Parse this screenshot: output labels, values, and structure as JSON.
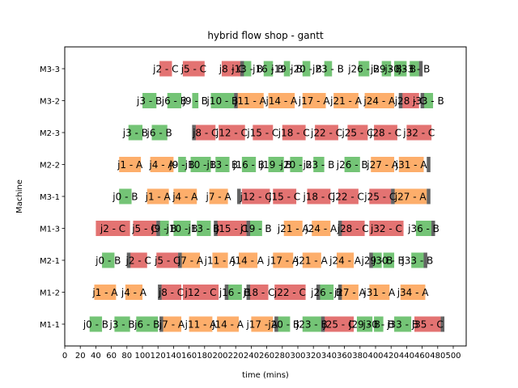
{
  "chart_data": {
    "type": "gantt",
    "title": "hybrid flow shop - gantt",
    "xlabel": "time (mins)",
    "ylabel": "Machine",
    "xlim": [
      0,
      520
    ],
    "xticks": [
      0,
      20,
      40,
      60,
      80,
      100,
      120,
      140,
      160,
      180,
      200,
      220,
      240,
      260,
      280,
      300,
      320,
      340,
      360,
      380,
      400,
      420,
      440,
      460,
      480,
      500
    ],
    "grid": false,
    "legend": "none",
    "colors": {
      "A": "#fdae6b",
      "B": "#74c476",
      "C": "#e37372",
      "setup": "#636363"
    },
    "machines": [
      "M1-1",
      "M1-2",
      "M2-1",
      "M1-3",
      "M3-1",
      "M2-2",
      "M2-3",
      "M3-2",
      "M3-3"
    ],
    "tasks": [
      {
        "machine": "M1-1",
        "label": "j0 - B",
        "type": "B",
        "start": 32,
        "end": 48
      },
      {
        "machine": "M1-1",
        "label": "j3 - B",
        "type": "B",
        "start": 64,
        "end": 84
      },
      {
        "machine": "M1-1",
        "label": "j6 - B",
        "type": "B",
        "start": 92,
        "end": 120
      },
      {
        "machine": "M1-1",
        "label": "j7 - A",
        "type": "A",
        "start": 126,
        "end": 150
      },
      {
        "machine": "M1-1",
        "label": "j11 - A",
        "type": "A",
        "start": 160,
        "end": 190
      },
      {
        "machine": "M1-1",
        "label": "j14 - A",
        "type": "A",
        "start": 196,
        "end": 224
      },
      {
        "machine": "M1-1",
        "label": "j17 - A",
        "type": "A",
        "start": 240,
        "end": 268
      },
      {
        "machine": "M1-1",
        "label": "j20 - B",
        "type": "B",
        "start": 274,
        "end": 290
      },
      {
        "machine": "M1-1",
        "label": "j23 - B",
        "type": "B",
        "start": 306,
        "end": 330
      },
      {
        "machine": "M1-1",
        "label": "j25 - C",
        "type": "C",
        "start": 334,
        "end": 372
      },
      {
        "machine": "M1-1",
        "label": "j29 - B",
        "type": "B",
        "start": 376,
        "end": 396
      },
      {
        "machine": "M1-1",
        "label": "j30 - B",
        "type": "B",
        "start": 398,
        "end": 410
      },
      {
        "machine": "M1-1",
        "label": "j33 - B",
        "type": "B",
        "start": 424,
        "end": 446
      },
      {
        "machine": "M1-1",
        "label": "j35 - C",
        "type": "C",
        "start": 450,
        "end": 484
      },
      {
        "machine": "M1-2",
        "label": "j1 - A",
        "type": "A",
        "start": 38,
        "end": 66
      },
      {
        "machine": "M1-2",
        "label": "j4 - A",
        "type": "A",
        "start": 78,
        "end": 100
      },
      {
        "machine": "M1-2",
        "label": "j8 - C",
        "type": "C",
        "start": 124,
        "end": 150
      },
      {
        "machine": "M1-2",
        "label": "j12 - C",
        "type": "C",
        "start": 152,
        "end": 198
      },
      {
        "machine": "M1-2",
        "label": "j16 - B",
        "type": "B",
        "start": 210,
        "end": 228
      },
      {
        "machine": "M1-2",
        "label": "j18 - C",
        "type": "C",
        "start": 238,
        "end": 262
      },
      {
        "machine": "M1-2",
        "label": "j22 - C",
        "type": "C",
        "start": 270,
        "end": 310
      },
      {
        "machine": "M1-2",
        "label": "j26 - B",
        "type": "B",
        "start": 328,
        "end": 346
      },
      {
        "machine": "M1-2",
        "label": "j27 - A",
        "type": "A",
        "start": 356,
        "end": 378
      },
      {
        "machine": "M1-2",
        "label": "j31 - A",
        "type": "A",
        "start": 392,
        "end": 418
      },
      {
        "machine": "M1-2",
        "label": "j34 - A",
        "type": "A",
        "start": 432,
        "end": 464
      },
      {
        "machine": "M2-1",
        "label": "j0 - B",
        "type": "B",
        "start": 48,
        "end": 64
      },
      {
        "machine": "M2-1",
        "label": "j2 - C",
        "type": "C",
        "start": 84,
        "end": 106
      },
      {
        "machine": "M2-1",
        "label": "j5 - C",
        "type": "C",
        "start": 118,
        "end": 146
      },
      {
        "machine": "M2-1",
        "label": "j7 - A",
        "type": "A",
        "start": 150,
        "end": 174
      },
      {
        "machine": "M2-1",
        "label": "j11 - A",
        "type": "A",
        "start": 190,
        "end": 210
      },
      {
        "machine": "M2-1",
        "label": "j14 - A",
        "type": "A",
        "start": 224,
        "end": 248
      },
      {
        "machine": "M2-1",
        "label": "j17 - A",
        "type": "A",
        "start": 268,
        "end": 294
      },
      {
        "machine": "M2-1",
        "label": "j21 - A",
        "type": "A",
        "start": 306,
        "end": 330
      },
      {
        "machine": "M2-1",
        "label": "j24 - A",
        "type": "A",
        "start": 350,
        "end": 372
      },
      {
        "machine": "M2-1",
        "label": "j29 - B",
        "type": "B",
        "start": 396,
        "end": 408
      },
      {
        "machine": "M2-1",
        "label": "j30 - B",
        "type": "B",
        "start": 410,
        "end": 424
      },
      {
        "machine": "M2-1",
        "label": "j33 - B",
        "type": "B",
        "start": 446,
        "end": 462
      },
      {
        "machine": "M1-3",
        "label": "j2 - C",
        "type": "C",
        "start": 40,
        "end": 84
      },
      {
        "machine": "M1-3",
        "label": "j5 - C",
        "type": "C",
        "start": 88,
        "end": 118
      },
      {
        "machine": "M1-3",
        "label": "j9 - B",
        "type": "B",
        "start": 122,
        "end": 134
      },
      {
        "machine": "M1-3",
        "label": "j10 - B",
        "type": "B",
        "start": 140,
        "end": 162
      },
      {
        "machine": "M1-3",
        "label": "j13 - B",
        "type": "B",
        "start": 170,
        "end": 188
      },
      {
        "machine": "M1-3",
        "label": "j15 - C",
        "type": "C",
        "start": 196,
        "end": 234
      },
      {
        "machine": "M1-3",
        "label": "j19 - B",
        "type": "B",
        "start": 238,
        "end": 254
      },
      {
        "machine": "M1-3",
        "label": "j21 - A",
        "type": "A",
        "start": 282,
        "end": 306
      },
      {
        "machine": "M1-3",
        "label": "j24 - A",
        "type": "A",
        "start": 318,
        "end": 342
      },
      {
        "machine": "M1-3",
        "label": "j28 - C",
        "type": "C",
        "start": 356,
        "end": 386
      },
      {
        "machine": "M1-3",
        "label": "j32 - C",
        "type": "C",
        "start": 392,
        "end": 436
      },
      {
        "machine": "M1-3",
        "label": "j36 - B",
        "type": "B",
        "start": 452,
        "end": 472
      },
      {
        "machine": "M3-1",
        "label": "j0 - B",
        "type": "B",
        "start": 70,
        "end": 86
      },
      {
        "machine": "M3-1",
        "label": "j1 - A",
        "type": "A",
        "start": 106,
        "end": 134
      },
      {
        "machine": "M3-1",
        "label": "j4 - A",
        "type": "A",
        "start": 140,
        "end": 170
      },
      {
        "machine": "M3-1",
        "label": "j7 - A",
        "type": "A",
        "start": 186,
        "end": 210
      },
      {
        "machine": "M3-1",
        "label": "j12 - C",
        "type": "C",
        "start": 228,
        "end": 264
      },
      {
        "machine": "M3-1",
        "label": "j15 - C",
        "type": "C",
        "start": 268,
        "end": 298
      },
      {
        "machine": "M3-1",
        "label": "j18 - C",
        "type": "C",
        "start": 312,
        "end": 342
      },
      {
        "machine": "M3-1",
        "label": "j22 - C",
        "type": "C",
        "start": 352,
        "end": 378
      },
      {
        "machine": "M3-1",
        "label": "j25 - C",
        "type": "C",
        "start": 392,
        "end": 420
      },
      {
        "machine": "M3-1",
        "label": "j27 - A",
        "type": "A",
        "start": 424,
        "end": 466
      },
      {
        "machine": "M2-2",
        "label": "j1 - A",
        "type": "A",
        "start": 70,
        "end": 98
      },
      {
        "machine": "M2-2",
        "label": "j4 - A",
        "type": "A",
        "start": 110,
        "end": 140
      },
      {
        "machine": "M2-2",
        "label": "j9 - B",
        "type": "B",
        "start": 146,
        "end": 156
      },
      {
        "machine": "M2-2",
        "label": "j10 - B",
        "type": "B",
        "start": 162,
        "end": 188
      },
      {
        "machine": "M2-2",
        "label": "j13 - B",
        "type": "B",
        "start": 194,
        "end": 212
      },
      {
        "machine": "M2-2",
        "label": "j16 - B",
        "type": "B",
        "start": 228,
        "end": 246
      },
      {
        "machine": "M2-2",
        "label": "j19 - B",
        "type": "B",
        "start": 262,
        "end": 282
      },
      {
        "machine": "M2-2",
        "label": "j20 - B",
        "type": "B",
        "start": 290,
        "end": 306
      },
      {
        "machine": "M2-2",
        "label": "j23 - B",
        "type": "B",
        "start": 320,
        "end": 334
      },
      {
        "machine": "M2-2",
        "label": "j26 - B",
        "type": "B",
        "start": 360,
        "end": 380
      },
      {
        "machine": "M2-2",
        "label": "j27 - A",
        "type": "A",
        "start": 394,
        "end": 424
      },
      {
        "machine": "M2-2",
        "label": "j31 - A",
        "type": "A",
        "start": 430,
        "end": 462
      },
      {
        "machine": "M2-3",
        "label": "j3 - B",
        "type": "B",
        "start": 82,
        "end": 100
      },
      {
        "machine": "M2-3",
        "label": "j6 - B",
        "type": "B",
        "start": 112,
        "end": 132
      },
      {
        "machine": "M2-3",
        "label": "j8 - C",
        "type": "C",
        "start": 168,
        "end": 194
      },
      {
        "machine": "M2-3",
        "label": "j12 - C",
        "type": "C",
        "start": 198,
        "end": 232
      },
      {
        "machine": "M2-3",
        "label": "j15 - C",
        "type": "C",
        "start": 242,
        "end": 268
      },
      {
        "machine": "M2-3",
        "label": "j18 - C",
        "type": "C",
        "start": 280,
        "end": 310
      },
      {
        "machine": "M2-3",
        "label": "j22 - C",
        "type": "C",
        "start": 322,
        "end": 352
      },
      {
        "machine": "M2-3",
        "label": "j25 - C",
        "type": "C",
        "start": 364,
        "end": 390
      },
      {
        "machine": "M2-3",
        "label": "j28 - C",
        "type": "C",
        "start": 398,
        "end": 428
      },
      {
        "machine": "M2-3",
        "label": "j32 - C",
        "type": "C",
        "start": 440,
        "end": 472
      },
      {
        "machine": "M3-2",
        "label": "j3 - B",
        "type": "B",
        "start": 100,
        "end": 118
      },
      {
        "machine": "M3-2",
        "label": "j6 - B",
        "type": "B",
        "start": 132,
        "end": 150
      },
      {
        "machine": "M3-2",
        "label": "j9 - B",
        "type": "B",
        "start": 164,
        "end": 172
      },
      {
        "machine": "M3-2",
        "label": "j10 - B",
        "type": "B",
        "start": 188,
        "end": 218
      },
      {
        "machine": "M3-2",
        "label": "j11 - A",
        "type": "A",
        "start": 222,
        "end": 256
      },
      {
        "machine": "M3-2",
        "label": "j14 - A",
        "type": "A",
        "start": 262,
        "end": 296
      },
      {
        "machine": "M3-2",
        "label": "j17 - A",
        "type": "A",
        "start": 306,
        "end": 336
      },
      {
        "machine": "M3-2",
        "label": "j21 - A",
        "type": "A",
        "start": 346,
        "end": 378
      },
      {
        "machine": "M3-2",
        "label": "j24 - A",
        "type": "A",
        "start": 386,
        "end": 424
      },
      {
        "machine": "M3-2",
        "label": "j28 - C",
        "type": "C",
        "start": 434,
        "end": 456
      },
      {
        "machine": "M3-2",
        "label": "j33 - B",
        "type": "B",
        "start": 462,
        "end": 474
      },
      {
        "machine": "M3-3",
        "label": "j2 - C",
        "type": "C",
        "start": 122,
        "end": 138
      },
      {
        "machine": "M3-3",
        "label": "j5 - C",
        "type": "C",
        "start": 152,
        "end": 180
      },
      {
        "machine": "M3-3",
        "label": "j8 - C",
        "type": "C",
        "start": 202,
        "end": 228
      },
      {
        "machine": "M3-3",
        "label": "j13 - B",
        "type": "B",
        "start": 230,
        "end": 240
      },
      {
        "machine": "M3-3",
        "label": "j16 - B",
        "type": "B",
        "start": 256,
        "end": 268
      },
      {
        "machine": "M3-3",
        "label": "j19 - B",
        "type": "B",
        "start": 282,
        "end": 290
      },
      {
        "machine": "M3-3",
        "label": "j20 - B",
        "type": "B",
        "start": 306,
        "end": 316
      },
      {
        "machine": "M3-3",
        "label": "j23 - B",
        "type": "B",
        "start": 334,
        "end": 344
      },
      {
        "machine": "M3-3",
        "label": "j26 - B",
        "type": "B",
        "start": 378,
        "end": 392
      },
      {
        "machine": "M3-3",
        "label": "j29 - B",
        "type": "B",
        "start": 408,
        "end": 420
      },
      {
        "machine": "M3-3",
        "label": "j30 - B",
        "type": "B",
        "start": 424,
        "end": 440
      },
      {
        "machine": "M3-3",
        "label": "j33 - B",
        "type": "B",
        "start": 444,
        "end": 456
      }
    ],
    "setups": [
      {
        "machine": "M1-1",
        "time": 124
      },
      {
        "machine": "M1-1",
        "time": 272
      },
      {
        "machine": "M1-1",
        "time": 332
      },
      {
        "machine": "M1-1",
        "time": 486
      },
      {
        "machine": "M1-2",
        "time": 122
      },
      {
        "machine": "M1-2",
        "time": 208
      },
      {
        "machine": "M1-2",
        "time": 236
      },
      {
        "machine": "M1-2",
        "time": 326
      },
      {
        "machine": "M1-2",
        "time": 354
      },
      {
        "machine": "M2-1",
        "time": 82
      },
      {
        "machine": "M2-1",
        "time": 148
      },
      {
        "machine": "M2-1",
        "time": 394
      },
      {
        "machine": "M2-1",
        "time": 464
      },
      {
        "machine": "M1-3",
        "time": 120
      },
      {
        "machine": "M1-3",
        "time": 194
      },
      {
        "machine": "M1-3",
        "time": 236
      },
      {
        "machine": "M1-3",
        "time": 354
      },
      {
        "machine": "M1-3",
        "time": 474
      },
      {
        "machine": "M3-1",
        "time": 224
      },
      {
        "machine": "M3-1",
        "time": 422
      },
      {
        "machine": "M3-1",
        "time": 468
      },
      {
        "machine": "M2-2",
        "time": 468
      },
      {
        "machine": "M2-3",
        "time": 166
      },
      {
        "machine": "M3-2",
        "time": 220
      },
      {
        "machine": "M3-2",
        "time": 432
      },
      {
        "machine": "M3-2",
        "time": 460
      },
      {
        "machine": "M3-3",
        "time": 228
      },
      {
        "machine": "M3-3",
        "time": 458
      }
    ]
  }
}
